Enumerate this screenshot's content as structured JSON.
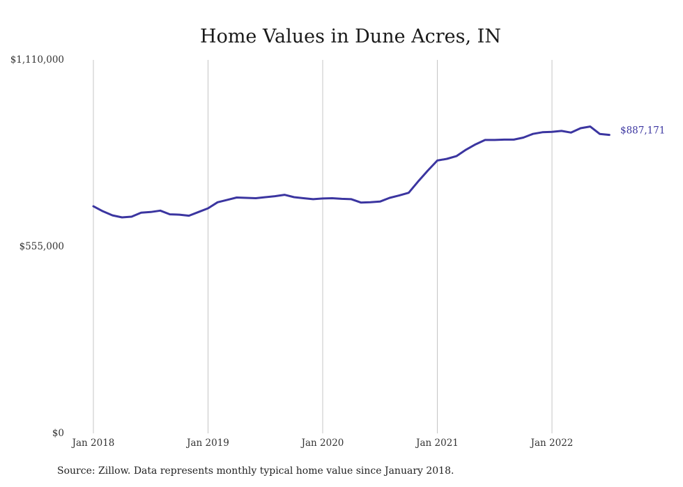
{
  "colors": {
    "line": "#3b35a0",
    "grid": "#c4c4c4",
    "text": "#333333"
  },
  "chart_data": {
    "type": "line",
    "title": "Home Values in Dune Acres, IN",
    "xlabel": "",
    "ylabel": "",
    "ylim": [
      0,
      1110000
    ],
    "y_ticks": [
      0,
      555000,
      1110000
    ],
    "y_tick_labels": [
      "$0",
      "$555,000",
      "$1,110,000"
    ],
    "x_ticks": [
      "2018-01",
      "2019-01",
      "2020-01",
      "2021-01",
      "2022-01"
    ],
    "x_tick_labels": [
      "Jan 2018",
      "Jan 2019",
      "Jan 2020",
      "Jan 2021",
      "Jan 2022"
    ],
    "grid": "vertical lines at x ticks",
    "end_label": "$887,171",
    "series": [
      {
        "x": [
          "2018-01",
          "2018-02",
          "2018-03",
          "2018-04",
          "2018-05",
          "2018-06",
          "2018-07",
          "2018-08",
          "2018-09",
          "2018-10",
          "2018-11",
          "2018-12",
          "2019-01",
          "2019-02",
          "2019-03",
          "2019-04",
          "2019-05",
          "2019-06",
          "2019-07",
          "2019-08",
          "2019-09",
          "2019-10",
          "2019-11",
          "2019-12",
          "2020-01",
          "2020-02",
          "2020-03",
          "2020-04",
          "2020-05",
          "2020-06",
          "2020-07",
          "2020-08",
          "2020-09",
          "2020-10",
          "2020-11",
          "2020-12",
          "2021-01",
          "2021-02",
          "2021-03",
          "2021-04",
          "2021-05",
          "2021-06",
          "2021-07",
          "2021-08",
          "2021-09",
          "2021-10",
          "2021-11",
          "2021-12",
          "2022-01",
          "2022-02",
          "2022-03",
          "2022-04",
          "2022-05",
          "2022-06",
          "2022-07"
        ],
        "values": [
          675000,
          660000,
          648000,
          642000,
          644000,
          656000,
          658000,
          662000,
          651000,
          650000,
          647000,
          658000,
          669000,
          687000,
          694000,
          701000,
          700000,
          699000,
          702000,
          705000,
          709000,
          702000,
          699000,
          696000,
          698000,
          699000,
          697000,
          696000,
          686000,
          687000,
          689000,
          700000,
          707000,
          715000,
          749000,
          781000,
          811000,
          816000,
          824000,
          843000,
          859000,
          872000,
          872000,
          873000,
          873000,
          879000,
          890000,
          895000,
          896000,
          899000,
          894000,
          907000,
          912000,
          890000,
          887171
        ]
      }
    ]
  },
  "source": "Source: Zillow. Data represents monthly typical home value since January 2018."
}
